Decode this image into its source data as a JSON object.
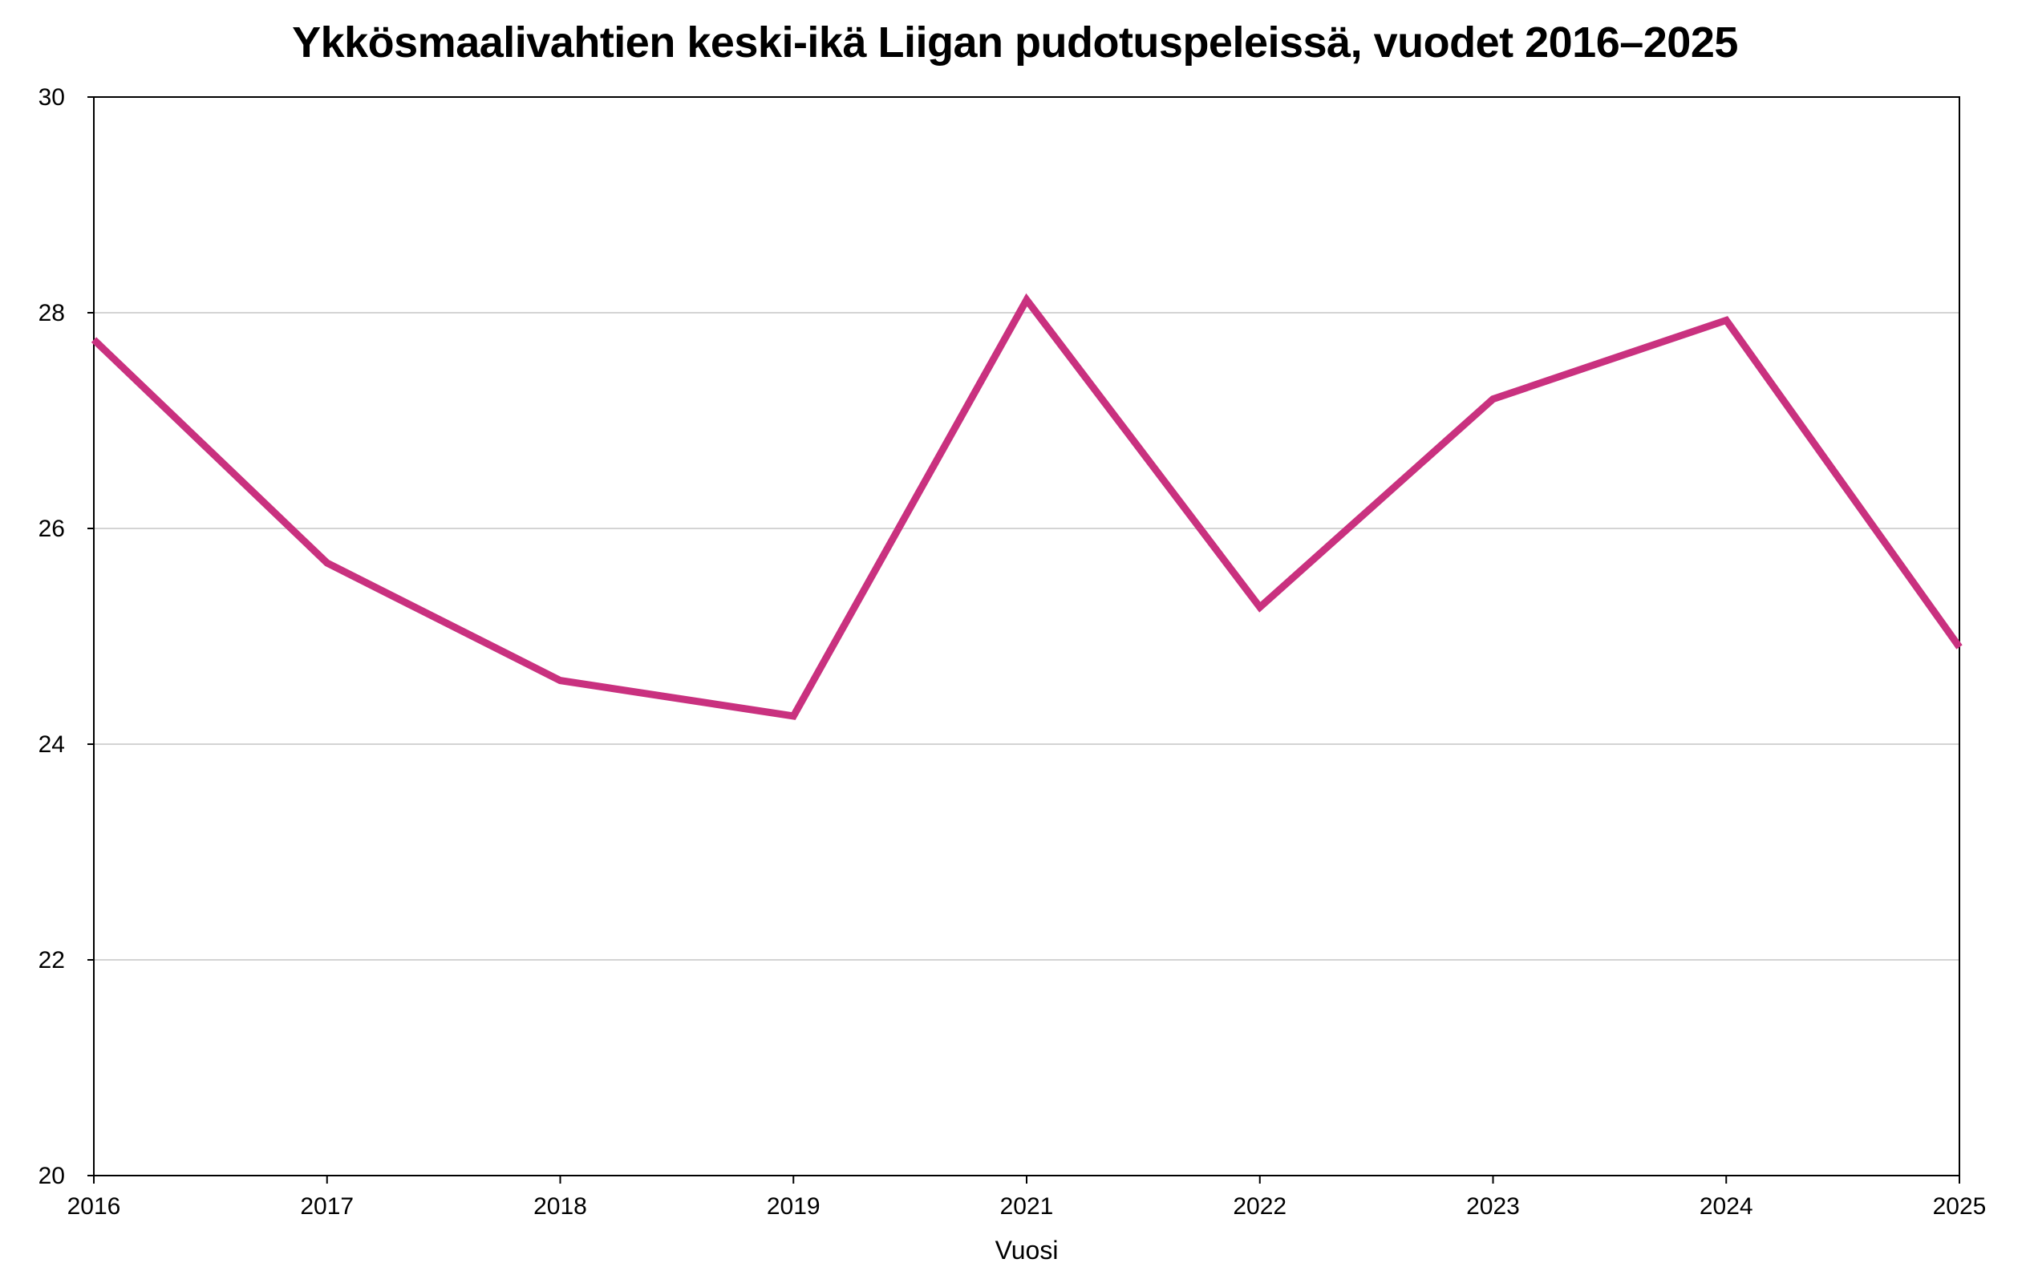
{
  "chart_data": {
    "type": "line",
    "title": "Ykkösmaalivahtien keski-ikä Liigan pudotuspeleissä, vuodet 2016–2025",
    "xlabel": "Vuosi",
    "ylabel": "",
    "x": [
      "2016",
      "2017",
      "2018",
      "2019",
      "2021",
      "2022",
      "2023",
      "2024",
      "2025"
    ],
    "series": [
      {
        "values": [
          27.75,
          25.68,
          24.59,
          24.26,
          28.12,
          25.27,
          27.2,
          27.93,
          24.9
        ],
        "color": "#c9317f"
      }
    ],
    "ylim": [
      20,
      30
    ],
    "yticks": [
      "20",
      "22",
      "24",
      "26",
      "28",
      "30"
    ],
    "grid": true,
    "legend": "none"
  }
}
